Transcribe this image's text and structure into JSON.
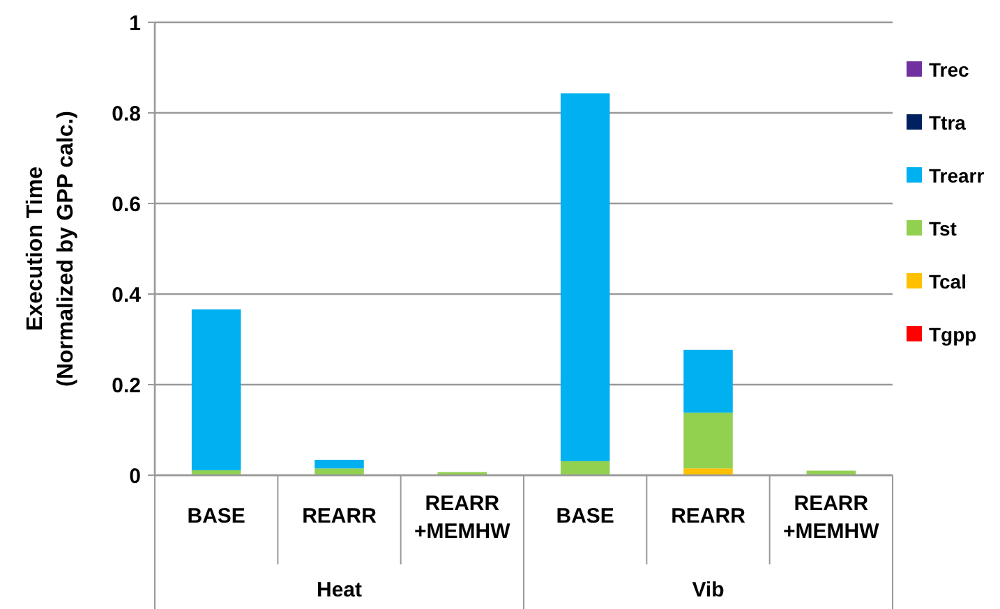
{
  "chart_data": {
    "type": "bar",
    "stacked": true,
    "ylabel": "Execution Time\n(Normalized by GPP calc.)",
    "categories": [
      "BASE",
      "REARR",
      "REARR\n+MEMHW",
      "BASE",
      "REARR",
      "REARR\n+MEMHW"
    ],
    "annotations": [
      "Heat",
      "Vib"
    ],
    "series": [
      {
        "name": "Tgpp",
        "color": "#ff0000",
        "values": [
          0,
          0,
          0,
          0,
          0,
          0
        ]
      },
      {
        "name": "Tcal",
        "color": "#ffc000",
        "values": [
          0,
          0,
          0,
          0,
          0.015,
          0
        ]
      },
      {
        "name": "Tst",
        "color": "#92d050",
        "values": [
          0.011,
          0.015,
          0.007,
          0.031,
          0.123,
          0.01
        ]
      },
      {
        "name": "Trearr",
        "color": "#00b0f0",
        "values": [
          0.355,
          0.019,
          0,
          0.812,
          0.139,
          0
        ]
      },
      {
        "name": "Ttra",
        "color": "#002060",
        "values": [
          0,
          0,
          0,
          0,
          0,
          0
        ]
      },
      {
        "name": "Trec",
        "color": "#7030a0",
        "values": [
          0,
          0,
          0,
          0,
          0,
          0
        ]
      }
    ],
    "ylim": [
      0,
      1
    ],
    "yticks": [
      0,
      {
        "value": 0.2,
        "label": "0.2"
      },
      {
        "value": 0.4,
        "label": "0.4"
      },
      {
        "value": 0.6,
        "label": "0.6"
      },
      {
        "value": 0.8,
        "label": "0.8"
      },
      1
    ],
    "grid": "y",
    "legend": "right"
  }
}
